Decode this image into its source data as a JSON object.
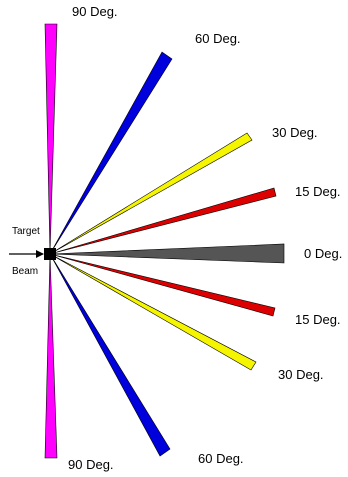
{
  "target_label": "Target",
  "beam_label": "Beam",
  "colors": {
    "deg0": "#555555",
    "deg15": "#dd0000",
    "deg30": "#f5f500",
    "deg60": "#0000dd",
    "deg90": "#ff00ff",
    "target": "#000000",
    "outline": "#000000"
  },
  "wedges": [
    {
      "id": "wedge-0-deg",
      "label": "0 Deg.",
      "color_key": "deg0"
    },
    {
      "id": "wedge-15-deg-upper",
      "label": "15 Deg.",
      "color_key": "deg15"
    },
    {
      "id": "wedge-15-deg-lower",
      "label": "15 Deg.",
      "color_key": "deg15"
    },
    {
      "id": "wedge-30-deg-upper",
      "label": "30 Deg.",
      "color_key": "deg30"
    },
    {
      "id": "wedge-30-deg-lower",
      "label": "30 Deg.",
      "color_key": "deg30"
    },
    {
      "id": "wedge-60-deg-upper",
      "label": "60 Deg.",
      "color_key": "deg60"
    },
    {
      "id": "wedge-60-deg-lower",
      "label": "60 Deg.",
      "color_key": "deg60"
    },
    {
      "id": "wedge-90-deg-upper",
      "label": "90 Deg.",
      "color_key": "deg90"
    },
    {
      "id": "wedge-90-deg-lower",
      "label": "90 Deg.",
      "color_key": "deg90"
    }
  ]
}
